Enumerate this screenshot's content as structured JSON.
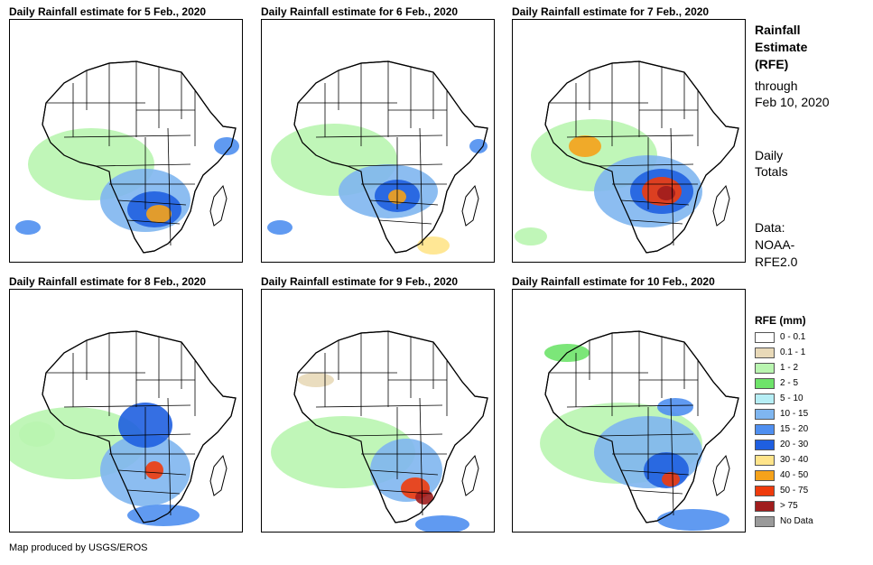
{
  "sidebar": {
    "title_line1": "Rainfall",
    "title_line2": "Estimate",
    "title_line3": "(RFE)",
    "through_line1": "through",
    "through_line2": "Feb 10, 2020",
    "totals_line1": "Daily",
    "totals_line2": "Totals",
    "data_line1": "Data:",
    "data_line2": "NOAA-",
    "data_line3": "RFE2.0"
  },
  "panels": [
    {
      "title": "Daily Rainfall estimate for 5 Feb., 2020"
    },
    {
      "title": "Daily Rainfall estimate for 6 Feb., 2020"
    },
    {
      "title": "Daily Rainfall estimate for 7 Feb., 2020"
    },
    {
      "title": "Daily Rainfall estimate for 8 Feb., 2020"
    },
    {
      "title": "Daily Rainfall estimate for 9 Feb., 2020"
    },
    {
      "title": "Daily Rainfall estimate for 10 Feb., 2020"
    }
  ],
  "legend": {
    "title": "RFE (mm)",
    "items": [
      {
        "label": "0 - 0.1",
        "color": "#ffffff"
      },
      {
        "label": "0.1 - 1",
        "color": "#e8d9b8"
      },
      {
        "label": "1 - 2",
        "color": "#b9f5b0"
      },
      {
        "label": "2 - 5",
        "color": "#6ee36a"
      },
      {
        "label": "5 - 10",
        "color": "#b6eef5"
      },
      {
        "label": "10 - 15",
        "color": "#7fb6f0"
      },
      {
        "label": "15 - 20",
        "color": "#4f8ff0"
      },
      {
        "label": "20 - 30",
        "color": "#1f5fe0"
      },
      {
        "label": "30 - 40",
        "color": "#ffe48a"
      },
      {
        "label": "40 - 50",
        "color": "#f5a21a"
      },
      {
        "label": "50 - 75",
        "color": "#ef3b0c"
      },
      {
        "label": "> 75",
        "color": "#a01d1d"
      },
      {
        "label": "No Data",
        "color": "#9a9a9a"
      }
    ]
  },
  "credit": "Map produced by USGS/EROS"
}
